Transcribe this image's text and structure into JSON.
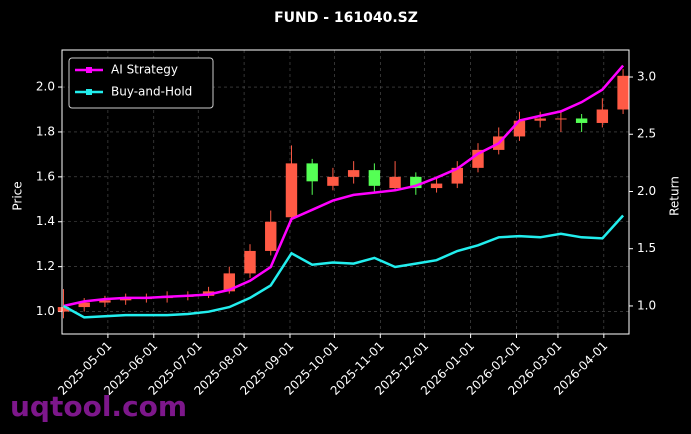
{
  "chart_data": {
    "type": "candlestick",
    "title": "FUND - 161040.SZ",
    "ylabel": "Price",
    "y2label": "Return",
    "watermark": "uqtool.com",
    "x": [
      "2025-04-01",
      "2025-04-15",
      "2025-04-29",
      "2025-05-13",
      "2025-05-27",
      "2025-06-10",
      "2025-06-24",
      "2025-07-08",
      "2025-07-22",
      "2025-08-05",
      "2025-08-19",
      "2025-09-02",
      "2025-09-16",
      "2025-09-30",
      "2025-10-14",
      "2025-10-28",
      "2025-11-11",
      "2025-11-25",
      "2025-12-09",
      "2025-12-23",
      "2026-01-06",
      "2026-01-20",
      "2026-02-03",
      "2026-02-17",
      "2026-03-03",
      "2026-03-17",
      "2026-03-31",
      "2026-04-14"
    ],
    "open": [
      1.0,
      1.02,
      1.04,
      1.05,
      1.06,
      1.06,
      1.07,
      1.07,
      1.09,
      1.17,
      1.27,
      1.42,
      1.66,
      1.56,
      1.6,
      1.63,
      1.55,
      1.6,
      1.55,
      1.57,
      1.64,
      1.72,
      1.78,
      1.85,
      1.86,
      1.86,
      1.84,
      1.9
    ],
    "high": [
      1.1,
      1.06,
      1.07,
      1.08,
      1.08,
      1.09,
      1.09,
      1.11,
      1.2,
      1.3,
      1.45,
      1.74,
      1.68,
      1.64,
      1.67,
      1.66,
      1.67,
      1.62,
      1.6,
      1.67,
      1.75,
      1.82,
      1.89,
      1.89,
      1.89,
      1.88,
      1.95,
      2.08
    ],
    "low": [
      0.97,
      1.0,
      1.02,
      1.03,
      1.04,
      1.04,
      1.05,
      1.06,
      1.08,
      1.15,
      1.25,
      1.4,
      1.52,
      1.54,
      1.57,
      1.53,
      1.54,
      1.52,
      1.53,
      1.55,
      1.62,
      1.7,
      1.76,
      1.82,
      1.8,
      1.8,
      1.82,
      1.88
    ],
    "close": [
      1.02,
      1.04,
      1.05,
      1.06,
      1.06,
      1.07,
      1.07,
      1.09,
      1.17,
      1.27,
      1.4,
      1.66,
      1.58,
      1.6,
      1.63,
      1.56,
      1.6,
      1.55,
      1.57,
      1.64,
      1.72,
      1.78,
      1.85,
      1.86,
      1.86,
      1.84,
      1.9,
      2.05
    ],
    "up_color": "#ff5a45",
    "down_color": "#55ff55",
    "series": [
      {
        "name": "AI Strategy",
        "color": "#ff00ff",
        "axis": "y2",
        "values": [
          1.0,
          1.04,
          1.06,
          1.07,
          1.07,
          1.08,
          1.09,
          1.1,
          1.14,
          1.22,
          1.34,
          1.76,
          1.84,
          1.92,
          1.97,
          1.99,
          2.01,
          2.05,
          2.12,
          2.2,
          2.33,
          2.42,
          2.62,
          2.66,
          2.7,
          2.78,
          2.89,
          3.1
        ]
      },
      {
        "name": "Buy-and-Hold",
        "color": "#22eeee",
        "axis": "y2",
        "values": [
          1.0,
          0.9,
          0.91,
          0.92,
          0.92,
          0.92,
          0.93,
          0.95,
          0.99,
          1.07,
          1.18,
          1.46,
          1.36,
          1.38,
          1.37,
          1.42,
          1.34,
          1.37,
          1.4,
          1.48,
          1.53,
          1.6,
          1.61,
          1.6,
          1.63,
          1.6,
          1.59,
          1.79
        ]
      }
    ],
    "xlim": [
      "2025-03-31",
      "2026-04-18"
    ],
    "xticks": [
      "2025-05-01",
      "2025-06-01",
      "2025-07-01",
      "2025-08-01",
      "2025-09-01",
      "2025-10-01",
      "2025-11-01",
      "2025-12-01",
      "2026-01-01",
      "2026-02-01",
      "2026-03-01",
      "2026-04-01"
    ],
    "ylim": [
      0.9,
      2.165
    ],
    "yticks": [
      {
        "value": 1,
        "label": "1.0"
      },
      1.2,
      1.4,
      1.6,
      1.8,
      {
        "value": 2,
        "label": "2.0"
      }
    ],
    "y2lim": [
      0.755,
      3.236
    ],
    "y2ticks": [
      {
        "value": 1,
        "label": "1.0"
      },
      1.5,
      {
        "value": 2,
        "label": "2.0"
      },
      2.5,
      {
        "value": 3,
        "label": "3.0"
      }
    ],
    "grid": true,
    "legend": "upper left"
  }
}
